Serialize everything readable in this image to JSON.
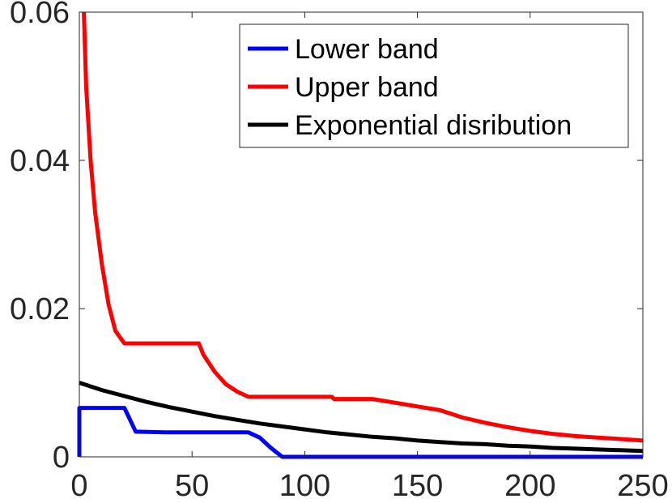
{
  "chart_data": {
    "type": "line",
    "title": "",
    "xlabel": "",
    "ylabel": "",
    "xlim": [
      0,
      250
    ],
    "ylim": [
      0,
      0.06
    ],
    "x_ticks": [
      {
        "value": 0,
        "label": "0"
      },
      {
        "value": 50,
        "label": "50"
      },
      {
        "value": 100,
        "label": "100"
      },
      {
        "value": 150,
        "label": "150"
      },
      {
        "value": 200,
        "label": "200"
      },
      {
        "value": 250,
        "label": "250"
      }
    ],
    "y_ticks": [
      {
        "value": 0,
        "label": "0"
      },
      {
        "value": 0.02,
        "label": "0.02"
      },
      {
        "value": 0.04,
        "label": "0.04"
      },
      {
        "value": 0.06,
        "label": "0.06"
      }
    ],
    "grid": false,
    "legend_position": "top-right",
    "series": [
      {
        "name": "Lower band",
        "color": "#0000ff",
        "x": [
          0,
          0,
          20,
          25,
          38,
          75,
          80,
          85,
          90,
          250
        ],
        "y": [
          0,
          0.0066,
          0.0066,
          0.0034,
          0.0033,
          0.0033,
          0.0026,
          0.0012,
          0,
          0
        ]
      },
      {
        "name": "Upper band",
        "color": "#ff0000",
        "x": [
          2,
          3,
          5,
          7,
          10,
          13,
          16,
          20,
          53,
          55,
          60,
          65,
          70,
          75,
          112,
          113,
          130,
          140,
          150,
          160,
          170,
          180,
          190,
          200,
          210,
          220,
          230,
          240,
          250
        ],
        "y": [
          0.06,
          0.05,
          0.04,
          0.033,
          0.026,
          0.0205,
          0.017,
          0.0153,
          0.0153,
          0.0138,
          0.0115,
          0.0098,
          0.0088,
          0.0081,
          0.0081,
          0.0078,
          0.0078,
          0.0073,
          0.0068,
          0.0063,
          0.0053,
          0.0046,
          0.004,
          0.0035,
          0.0031,
          0.0028,
          0.0026,
          0.0024,
          0.0022
        ]
      },
      {
        "name": "Exponential disribution",
        "color": "#000000",
        "x": [
          0,
          10,
          20,
          30,
          40,
          50,
          60,
          70,
          80,
          90,
          100,
          110,
          120,
          130,
          140,
          150,
          160,
          170,
          180,
          190,
          200,
          210,
          220,
          230,
          240,
          250
        ],
        "y": [
          0.01,
          0.009,
          0.0082,
          0.0074,
          0.0067,
          0.0061,
          0.0055,
          0.005,
          0.0045,
          0.0041,
          0.0037,
          0.0033,
          0.003,
          0.0027,
          0.0025,
          0.0022,
          0.002,
          0.0018,
          0.0017,
          0.0015,
          0.0014,
          0.0012,
          0.0011,
          0.001,
          0.0009,
          0.0008
        ]
      }
    ]
  }
}
